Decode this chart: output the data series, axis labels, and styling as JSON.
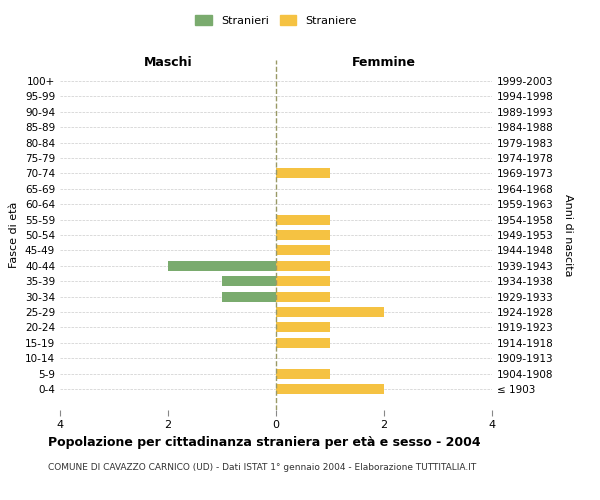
{
  "age_groups": [
    "100+",
    "95-99",
    "90-94",
    "85-89",
    "80-84",
    "75-79",
    "70-74",
    "65-69",
    "60-64",
    "55-59",
    "50-54",
    "45-49",
    "40-44",
    "35-39",
    "30-34",
    "25-29",
    "20-24",
    "15-19",
    "10-14",
    "5-9",
    "0-4"
  ],
  "birth_years": [
    "≤ 1903",
    "1904-1908",
    "1909-1913",
    "1914-1918",
    "1919-1923",
    "1924-1928",
    "1929-1933",
    "1934-1938",
    "1939-1943",
    "1944-1948",
    "1949-1953",
    "1954-1958",
    "1959-1963",
    "1964-1968",
    "1969-1973",
    "1974-1978",
    "1979-1983",
    "1984-1988",
    "1989-1993",
    "1994-1998",
    "1999-2003"
  ],
  "males": [
    0,
    0,
    0,
    0,
    0,
    0,
    0,
    0,
    0,
    0,
    0,
    0,
    2,
    1,
    1,
    0,
    0,
    0,
    0,
    0,
    0
  ],
  "females": [
    0,
    0,
    0,
    0,
    0,
    0,
    1,
    0,
    0,
    1,
    1,
    1,
    1,
    1,
    1,
    2,
    1,
    1,
    0,
    1,
    2
  ],
  "male_color": "#7aab6e",
  "female_color": "#f5c242",
  "title": "Popolazione per cittadinanza straniera per età e sesso - 2004",
  "subtitle": "COMUNE DI CAVAZZO CARNICO (UD) - Dati ISTAT 1° gennaio 2004 - Elaborazione TUTTITALIA.IT",
  "xlabel_left": "Maschi",
  "xlabel_right": "Femmine",
  "ylabel_left": "Fasce di età",
  "ylabel_right": "Anni di nascita",
  "legend_male": "Stranieri",
  "legend_female": "Straniere",
  "xlim": 4,
  "background_color": "#ffffff",
  "grid_color": "#cccccc"
}
